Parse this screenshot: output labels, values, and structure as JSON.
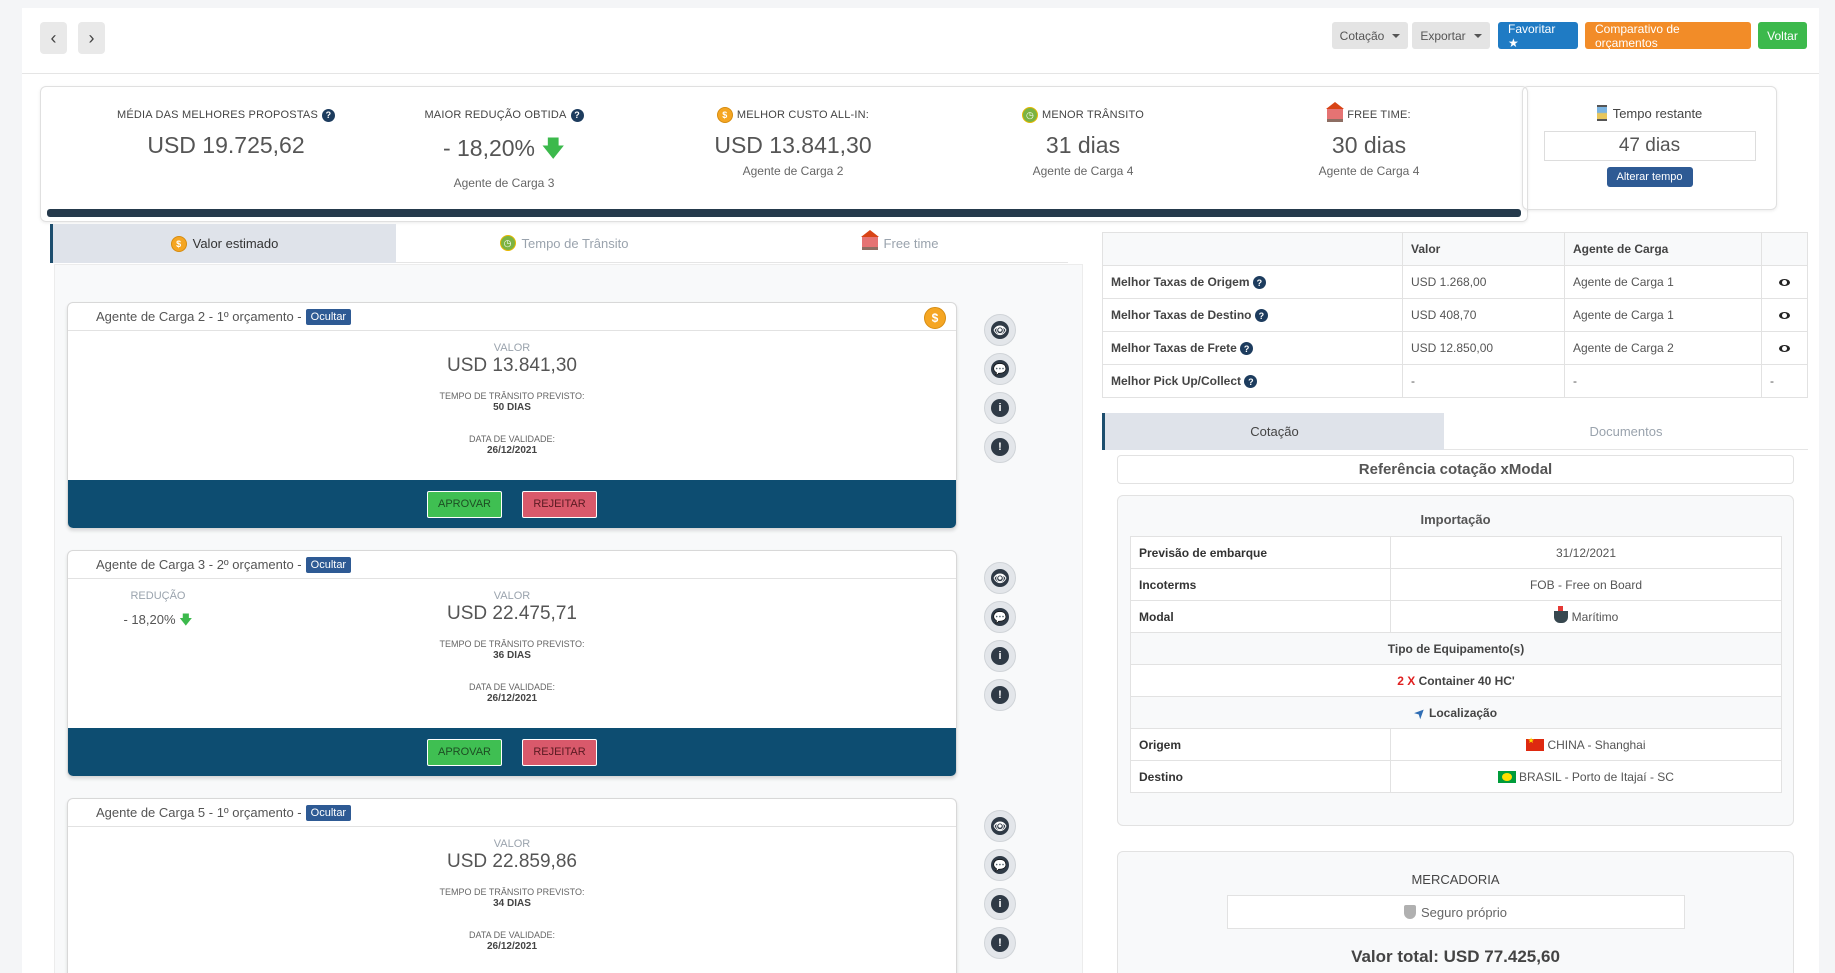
{
  "toolbar": {
    "back": "‹",
    "forward": "›",
    "cotacao": "Cotação",
    "exportar": "Exportar",
    "favoritar": "Favoritar ★",
    "comparativo": "Comparativo de orçamentos",
    "voltar": "Voltar",
    "colors": {
      "favoritar": "#1f7bc4",
      "comparativo": "#f28c28",
      "voltar": "#3cb94c"
    }
  },
  "stats": {
    "media": {
      "label": "MÉDIA DAS MELHORES PROPOSTAS",
      "value": "USD 19.725,62"
    },
    "reducao": {
      "label": "MAIOR REDUÇÃO OBTIDA",
      "value": "- 18,20%",
      "sub": "Agente de Carga 3"
    },
    "custo": {
      "label": "MELHOR CUSTO ALL-IN:",
      "value": "USD 13.841,30",
      "sub": "Agente de Carga 2"
    },
    "transito": {
      "label": "MENOR TRÂNSITO",
      "value": "31 dias",
      "sub": "Agente de Carga 4"
    },
    "freetime": {
      "label": "FREE TIME:",
      "value": "30 dias",
      "sub": "Agente de Carga 4"
    }
  },
  "timer": {
    "label": "Tempo restante",
    "value": "47 dias",
    "button": "Alterar tempo"
  },
  "left_tabs": [
    "Valor estimado",
    "Tempo de Trânsito",
    "Free time"
  ],
  "cards": [
    {
      "title": "Agente de Carga 2 - 1º orçamento -",
      "badge": "Ocultar",
      "valor_label": "VALOR",
      "valor": "USD 13.841,30",
      "transito_label": "TEMPO DE TRÂNSITO PREVISTO:",
      "transito": "50 DIAS",
      "validade_label": "DATA DE VALIDADE:",
      "validade": "26/12/2021",
      "aprovar": "APROVAR",
      "rejeitar": "REJEITAR"
    },
    {
      "title": "Agente de Carga 3 - 2º orçamento -",
      "badge": "Ocultar",
      "reducao_label": "REDUÇÃO",
      "reducao": "- 18,20%",
      "valor_label": "VALOR",
      "valor": "USD 22.475,71",
      "transito_label": "TEMPO DE TRÂNSITO PREVISTO:",
      "transito": "36 DIAS",
      "validade_label": "DATA DE VALIDADE:",
      "validade": "26/12/2021",
      "aprovar": "APROVAR",
      "rejeitar": "REJEITAR"
    },
    {
      "title": "Agente de Carga 5 - 1º orçamento -",
      "badge": "Ocultar",
      "valor_label": "VALOR",
      "valor": "USD 22.859,86",
      "transito_label": "TEMPO DE TRÂNSITO PREVISTO:",
      "transito": "34 DIAS",
      "validade_label": "DATA DE VALIDADE:",
      "validade": "26/12/2021"
    }
  ],
  "best_table": {
    "headers": [
      "",
      "Valor",
      "Agente de Carga",
      ""
    ],
    "rows": [
      {
        "label": "Melhor Taxas de Origem",
        "valor": "USD 1.268,00",
        "agente": "Agente de Carga 1"
      },
      {
        "label": "Melhor Taxas de Destino",
        "valor": "USD 408,70",
        "agente": "Agente de Carga 1"
      },
      {
        "label": "Melhor Taxas de Frete",
        "valor": "USD 12.850,00",
        "agente": "Agente de Carga 2"
      },
      {
        "label": "Melhor Pick Up/Collect",
        "valor": "-",
        "agente": "-",
        "extra": "-"
      }
    ]
  },
  "right_tabs": [
    "Cotação",
    "Documentos"
  ],
  "referencia": "Referência cotação xModal",
  "importacao": {
    "title": "Importação",
    "previsao_label": "Previsão de embarque",
    "previsao": "31/12/2021",
    "incoterms_label": "Incoterms",
    "incoterms": "FOB - Free on Board",
    "modal_label": "Modal",
    "modal": "Marítimo",
    "equip_title": "Tipo de Equipamento(s)",
    "equip_qty": "2 X",
    "equip": "Container 40 HC'",
    "loc_title": "Localização",
    "origem_label": "Origem",
    "origem": "CHINA - Shanghai",
    "destino_label": "Destino",
    "destino": "BRASIL - Porto de Itajaí - SC"
  },
  "mercadoria": {
    "title": "MERCADORIA",
    "seguro": "Seguro próprio",
    "total": "Valor total: USD 77.425,60"
  }
}
